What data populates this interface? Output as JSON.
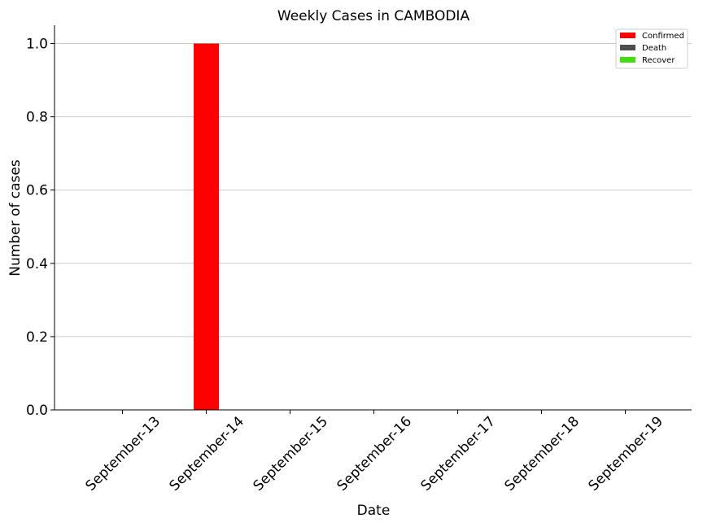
{
  "chart_data": {
    "type": "bar",
    "title": "Weekly Cases in CAMBODIA",
    "xlabel": "Date",
    "ylabel": "Number of cases",
    "categories": [
      "September-13",
      "September-14",
      "September-15",
      "September-16",
      "September-17",
      "September-18",
      "September-19"
    ],
    "series": [
      {
        "name": "Confirmed",
        "color": "#ff0000",
        "values": [
          0,
          1,
          0,
          0,
          0,
          0,
          0
        ]
      },
      {
        "name": "Death",
        "color": "#4d4d4d",
        "values": [
          0,
          0,
          0,
          0,
          0,
          0,
          0
        ]
      },
      {
        "name": "Recover",
        "color": "#44dd11",
        "values": [
          0,
          0,
          0,
          0,
          0,
          0,
          0
        ]
      }
    ],
    "ylim": [
      0,
      1.05
    ],
    "yticks": [
      "0.0",
      "0.2",
      "0.4",
      "0.6",
      "0.8",
      "1.0"
    ],
    "grid": "horizontal",
    "legend_position": "top-right"
  }
}
